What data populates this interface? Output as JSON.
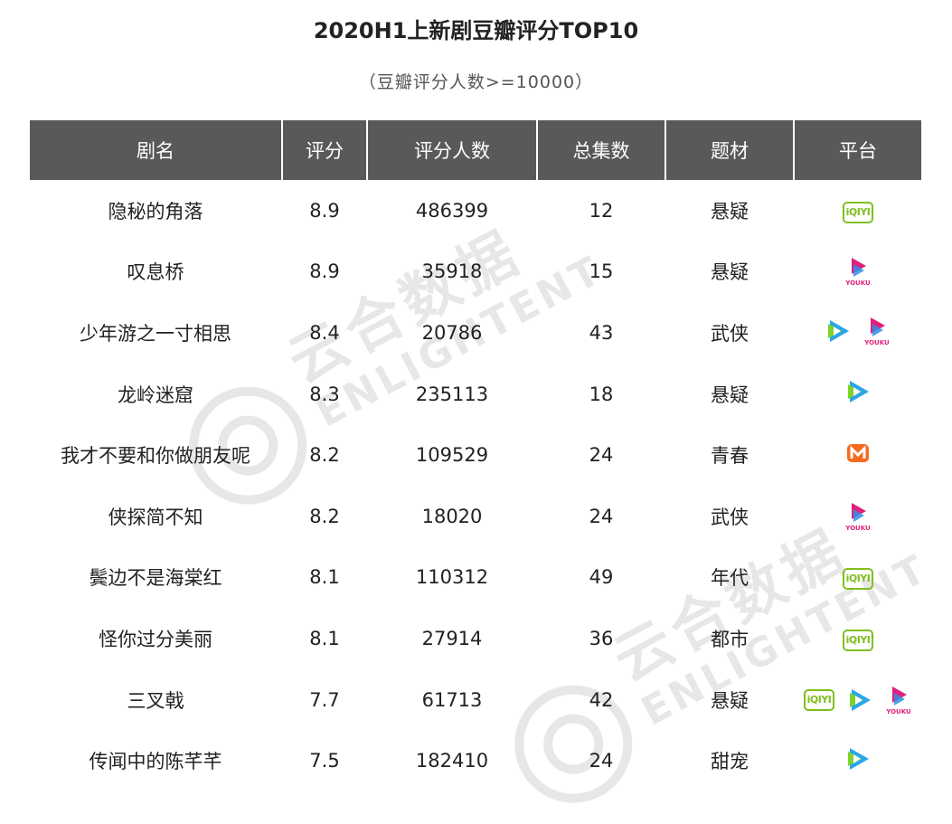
{
  "title": "2020H1上新剧豆瓣评分TOP10",
  "subtitle": "（豆瓣评分人数>=10000）",
  "watermark": {
    "cn": "云合数据",
    "en": "ENLIGHTENT"
  },
  "colors": {
    "header_bg": "#595959",
    "iqiyi_green": "#7fbf1e",
    "youku_pink": "#e0207a",
    "tencent_blue": "#2aa6e8",
    "mango_orange": "#f56a1e"
  },
  "chart_data": {
    "type": "table",
    "columns": [
      "剧名",
      "评分",
      "评分人数",
      "总集数",
      "题材",
      "平台"
    ],
    "rows": [
      {
        "name": "隐秘的角落",
        "score": "8.9",
        "raters": "486399",
        "episodes": "12",
        "genre": "悬疑",
        "platforms": [
          "iqiyi"
        ]
      },
      {
        "name": "叹息桥",
        "score": "8.9",
        "raters": "35918",
        "episodes": "15",
        "genre": "悬疑",
        "platforms": [
          "youku"
        ]
      },
      {
        "name": "少年游之一寸相思",
        "score": "8.4",
        "raters": "20786",
        "episodes": "43",
        "genre": "武侠",
        "platforms": [
          "tencent",
          "youku"
        ]
      },
      {
        "name": "龙岭迷窟",
        "score": "8.3",
        "raters": "235113",
        "episodes": "18",
        "genre": "悬疑",
        "platforms": [
          "tencent"
        ]
      },
      {
        "name": "我才不要和你做朋友呢",
        "score": "8.2",
        "raters": "109529",
        "episodes": "24",
        "genre": "青春",
        "platforms": [
          "mango"
        ]
      },
      {
        "name": "侠探简不知",
        "score": "8.2",
        "raters": "18020",
        "episodes": "24",
        "genre": "武侠",
        "platforms": [
          "youku"
        ]
      },
      {
        "name": "鬓边不是海棠红",
        "score": "8.1",
        "raters": "110312",
        "episodes": "49",
        "genre": "年代",
        "platforms": [
          "iqiyi"
        ]
      },
      {
        "name": "怪你过分美丽",
        "score": "8.1",
        "raters": "27914",
        "episodes": "36",
        "genre": "都市",
        "platforms": [
          "iqiyi"
        ]
      },
      {
        "name": "三叉戟",
        "score": "7.7",
        "raters": "61713",
        "episodes": "42",
        "genre": "悬疑",
        "platforms": [
          "iqiyi",
          "tencent",
          "youku"
        ]
      },
      {
        "name": "传闻中的陈芊芊",
        "score": "7.5",
        "raters": "182410",
        "episodes": "24",
        "genre": "甜宠",
        "platforms": [
          "tencent"
        ]
      }
    ],
    "platform_logo_text": {
      "iqiyi": "iQIYI",
      "youku": "YOUKU"
    }
  }
}
